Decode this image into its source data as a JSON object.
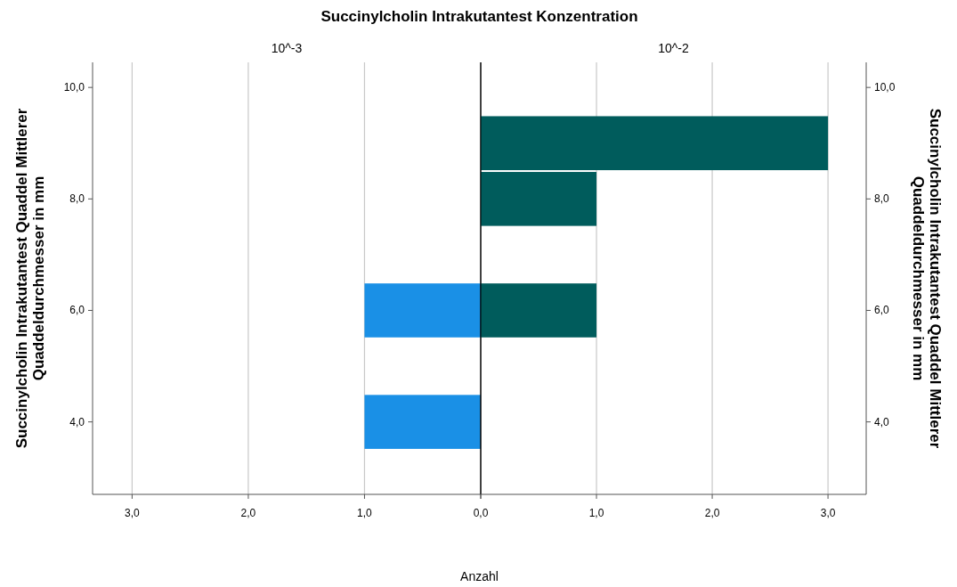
{
  "chart_data": [
    {
      "type": "histogram",
      "orientation": "horizontal",
      "title": "Succinylcholin Intrakutantest Konzentration",
      "subtitle": "10^-3",
      "xlabel": "Anzahl",
      "ylabel": "Succinylcholin Intrakutantest Quaddel Mittlerer Quaddeldurchmesser in mm",
      "bins": [
        3.5,
        4.5,
        5.5,
        6.5
      ],
      "values": [
        1,
        0,
        1
      ],
      "color": "#1a90e6",
      "xlim": [
        3.34,
        0
      ],
      "xticks": [
        {
          "value": 3,
          "label": "3,0"
        },
        {
          "value": 2,
          "label": "2,0"
        },
        {
          "value": 1,
          "label": "1,0"
        },
        {
          "value": 0,
          "label": null
        }
      ],
      "ylim": [
        2.7,
        10.45
      ],
      "yticks": [
        {
          "value": 4,
          "label": "4,0"
        },
        {
          "value": 6,
          "label": "6,0"
        },
        {
          "value": 8,
          "label": "8,0"
        },
        {
          "value": 10,
          "label": "10,0"
        }
      ],
      "grid": "x"
    },
    {
      "type": "histogram",
      "orientation": "horizontal",
      "subtitle": "10^-2",
      "ylabel": "Succinylcholin Intrakutantest Quaddel Mittlerer Quaddeldurchmesser in mm",
      "bins": [
        5.5,
        6.5,
        7.5,
        8.5,
        9.5
      ],
      "values": [
        1,
        0,
        1,
        3
      ],
      "color": "#005c5c",
      "xlim": [
        0,
        3.33
      ],
      "xticks": [
        {
          "value": 0,
          "label": "0,0"
        },
        {
          "value": 1,
          "label": "1,0"
        },
        {
          "value": 2,
          "label": "2,0"
        },
        {
          "value": 3,
          "label": "3,0"
        }
      ],
      "ylim": [
        2.7,
        10.45
      ],
      "yticks": [
        {
          "value": 4,
          "label": "4,0"
        },
        {
          "value": 6,
          "label": "6,0"
        },
        {
          "value": 8,
          "label": "8,0"
        },
        {
          "value": 10,
          "label": "10,0"
        }
      ],
      "grid": "x"
    }
  ]
}
